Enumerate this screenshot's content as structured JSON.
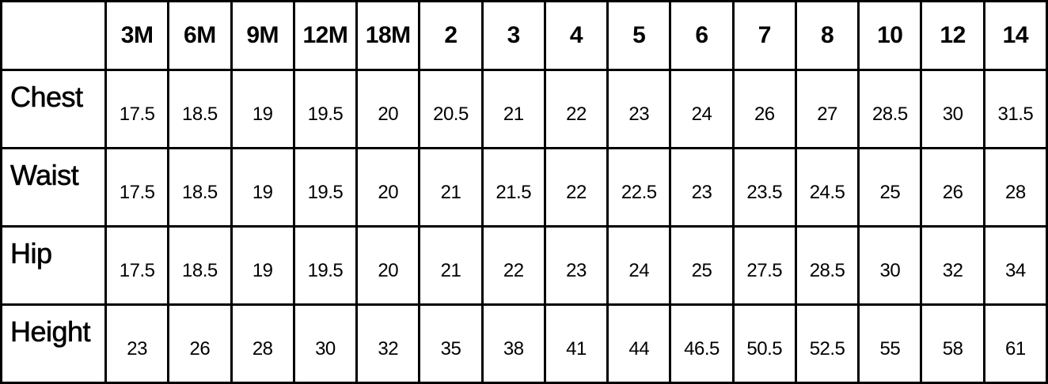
{
  "chart_data": {
    "type": "table",
    "corner": "",
    "columns": [
      "3M",
      "6M",
      "9M",
      "12M",
      "18M",
      "2",
      "3",
      "4",
      "5",
      "6",
      "7",
      "8",
      "10",
      "12",
      "14"
    ],
    "rows": [
      {
        "label": "Chest",
        "values": [
          "17.5",
          "18.5",
          "19",
          "19.5",
          "20",
          "20.5",
          "21",
          "22",
          "23",
          "24",
          "26",
          "27",
          "28.5",
          "30",
          "31.5"
        ]
      },
      {
        "label": "Waist",
        "values": [
          "17.5",
          "18.5",
          "19",
          "19.5",
          "20",
          "21",
          "21.5",
          "22",
          "22.5",
          "23",
          "23.5",
          "24.5",
          "25",
          "26",
          "28"
        ]
      },
      {
        "label": "Hip",
        "values": [
          "17.5",
          "18.5",
          "19",
          "19.5",
          "20",
          "21",
          "22",
          "23",
          "24",
          "25",
          "27.5",
          "28.5",
          "30",
          "32",
          "34"
        ]
      },
      {
        "label": "Height",
        "values": [
          "23",
          "26",
          "28",
          "30",
          "32",
          "35",
          "38",
          "41",
          "44",
          "46.5",
          "50.5",
          "52.5",
          "55",
          "58",
          "61"
        ]
      }
    ]
  }
}
